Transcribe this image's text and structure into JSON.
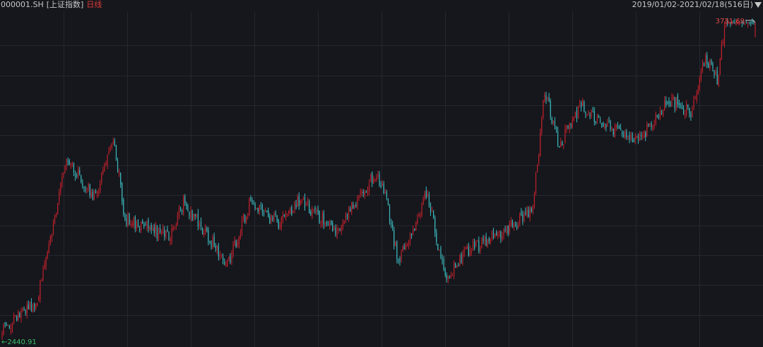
{
  "header": {
    "code": "000001.SH",
    "name": "[上证指数]",
    "period": "日线",
    "range": "2019/01/02-2021/02/18(516日)"
  },
  "labels": {
    "max": "3731.69",
    "min": "2440.91",
    "min_arrow": "←"
  },
  "colors": {
    "background": "#15171c",
    "grid": "#24272e",
    "up": "#c0202c",
    "down": "#3bb8bd",
    "text": "#c8c8c8",
    "max_label": "#e04848",
    "min_label": "#3cc06a"
  },
  "chart_data": {
    "type": "candlestick",
    "title": "",
    "xlabel": "",
    "ylabel": "",
    "grid": true,
    "ylim": [
      2420,
      3760
    ],
    "x_range": [
      "2019/01/02",
      "2021/02/18"
    ],
    "num_days": 516,
    "max_point": {
      "value": 3731.69
    },
    "min_point": {
      "value": 2440.91
    },
    "segments": [
      {
        "n": 25,
        "from": 2470,
        "to": 2600
      },
      {
        "n": 20,
        "from": 2600,
        "to": 3170
      },
      {
        "n": 20,
        "from": 3170,
        "to": 3020
      },
      {
        "n": 12,
        "from": 3020,
        "to": 3270
      },
      {
        "n": 8,
        "from": 3270,
        "to": 2930
      },
      {
        "n": 30,
        "from": 2930,
        "to": 2860
      },
      {
        "n": 10,
        "from": 2860,
        "to": 3000
      },
      {
        "n": 15,
        "from": 3000,
        "to": 2880
      },
      {
        "n": 15,
        "from": 2880,
        "to": 2740
      },
      {
        "n": 15,
        "from": 2740,
        "to": 2990
      },
      {
        "n": 20,
        "from": 2990,
        "to": 2920
      },
      {
        "n": 15,
        "from": 2920,
        "to": 3010
      },
      {
        "n": 25,
        "from": 3010,
        "to": 2880
      },
      {
        "n": 25,
        "from": 2880,
        "to": 3110
      },
      {
        "n": 7,
        "from": 3110,
        "to": 3060
      },
      {
        "n": 10,
        "from": 3060,
        "to": 2760
      },
      {
        "n": 20,
        "from": 2760,
        "to": 3040
      },
      {
        "n": 12,
        "from": 3040,
        "to": 2680
      },
      {
        "n": 15,
        "from": 2680,
        "to": 2800
      },
      {
        "n": 30,
        "from": 2800,
        "to": 2900
      },
      {
        "n": 15,
        "from": 2900,
        "to": 2980
      },
      {
        "n": 8,
        "from": 2980,
        "to": 3450
      },
      {
        "n": 10,
        "from": 3450,
        "to": 3230
      },
      {
        "n": 15,
        "from": 3230,
        "to": 3400
      },
      {
        "n": 20,
        "from": 3400,
        "to": 3300
      },
      {
        "n": 20,
        "from": 3300,
        "to": 3260
      },
      {
        "n": 20,
        "from": 3260,
        "to": 3420
      },
      {
        "n": 15,
        "from": 3420,
        "to": 3360
      },
      {
        "n": 10,
        "from": 3360,
        "to": 3590
      },
      {
        "n": 8,
        "from": 3590,
        "to": 3500
      },
      {
        "n": 6,
        "from": 3500,
        "to": 3731
      }
    ]
  }
}
